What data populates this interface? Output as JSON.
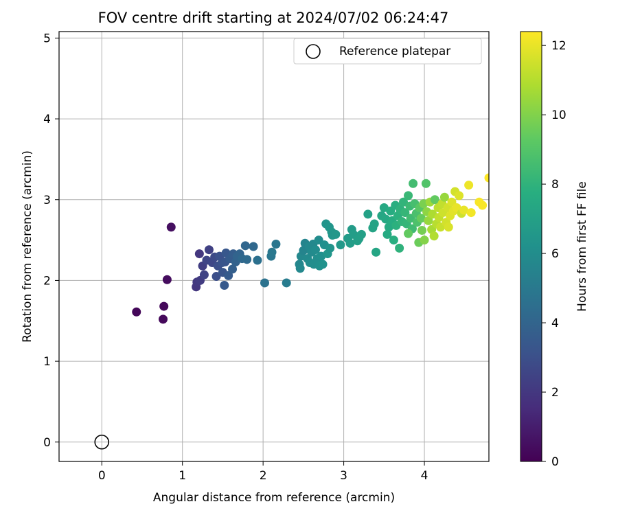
{
  "chart_data": {
    "type": "scatter",
    "title": "FOV centre drift starting at 2024/07/02 06:24:47",
    "xlabel": "Angular distance from reference (arcmin)",
    "ylabel": "Rotation from reference (arcmin)",
    "xlim": [
      -0.53,
      4.8
    ],
    "ylim": [
      -0.24,
      5.08
    ],
    "xticks": [
      "0",
      "1",
      "2",
      "3",
      "4"
    ],
    "yticks": [
      "0",
      "1",
      "2",
      "3",
      "4",
      "5"
    ],
    "grid": true,
    "legend": {
      "position": "top-right",
      "entries": [
        "Reference platepar"
      ]
    },
    "reference_point": {
      "x": 0,
      "y": 0
    },
    "colorbar": {
      "label": "Hours from first FF file",
      "range": [
        0,
        12.4
      ],
      "ticks": [
        "0",
        "2",
        "4",
        "6",
        "8",
        "10",
        "12"
      ],
      "colormap": "viridis"
    },
    "series": [
      {
        "points": [
          {
            "x": 0.43,
            "y": 1.61,
            "c": 0.2
          },
          {
            "x": 0.76,
            "y": 1.52,
            "c": 0.3
          },
          {
            "x": 0.77,
            "y": 1.68,
            "c": 0.3
          },
          {
            "x": 0.81,
            "y": 2.01,
            "c": 0.4
          },
          {
            "x": 0.86,
            "y": 2.66,
            "c": 0.5
          },
          {
            "x": 1.17,
            "y": 1.92,
            "c": 2.0
          },
          {
            "x": 1.18,
            "y": 1.98,
            "c": 2.1
          },
          {
            "x": 1.22,
            "y": 2.0,
            "c": 2.2
          },
          {
            "x": 1.21,
            "y": 2.33,
            "c": 2.0
          },
          {
            "x": 1.25,
            "y": 2.18,
            "c": 2.3
          },
          {
            "x": 1.27,
            "y": 2.07,
            "c": 2.5
          },
          {
            "x": 1.3,
            "y": 2.25,
            "c": 2.6
          },
          {
            "x": 1.33,
            "y": 2.38,
            "c": 2.4
          },
          {
            "x": 1.37,
            "y": 2.22,
            "c": 2.7
          },
          {
            "x": 1.4,
            "y": 2.29,
            "c": 2.8
          },
          {
            "x": 1.42,
            "y": 2.05,
            "c": 3.0
          },
          {
            "x": 1.44,
            "y": 2.18,
            "c": 3.0
          },
          {
            "x": 1.46,
            "y": 2.3,
            "c": 3.1
          },
          {
            "x": 1.49,
            "y": 2.22,
            "c": 3.2
          },
          {
            "x": 1.5,
            "y": 2.1,
            "c": 3.3
          },
          {
            "x": 1.52,
            "y": 1.94,
            "c": 3.5
          },
          {
            "x": 1.53,
            "y": 2.23,
            "c": 3.3
          },
          {
            "x": 1.54,
            "y": 2.34,
            "c": 3.4
          },
          {
            "x": 1.57,
            "y": 2.06,
            "c": 3.6
          },
          {
            "x": 1.59,
            "y": 2.27,
            "c": 3.6
          },
          {
            "x": 1.62,
            "y": 2.14,
            "c": 3.8
          },
          {
            "x": 1.63,
            "y": 2.33,
            "c": 3.7
          },
          {
            "x": 1.66,
            "y": 2.23,
            "c": 3.9
          },
          {
            "x": 1.68,
            "y": 2.3,
            "c": 4.0
          },
          {
            "x": 1.71,
            "y": 2.33,
            "c": 4.0
          },
          {
            "x": 1.74,
            "y": 2.27,
            "c": 4.2
          },
          {
            "x": 1.78,
            "y": 2.43,
            "c": 4.1
          },
          {
            "x": 1.8,
            "y": 2.26,
            "c": 4.3
          },
          {
            "x": 1.88,
            "y": 2.42,
            "c": 4.2
          },
          {
            "x": 1.93,
            "y": 2.25,
            "c": 4.6
          },
          {
            "x": 2.02,
            "y": 1.97,
            "c": 4.7
          },
          {
            "x": 2.1,
            "y": 2.3,
            "c": 4.9
          },
          {
            "x": 2.11,
            "y": 2.35,
            "c": 5.0
          },
          {
            "x": 2.16,
            "y": 2.45,
            "c": 4.9
          },
          {
            "x": 2.29,
            "y": 1.97,
            "c": 5.2
          },
          {
            "x": 2.45,
            "y": 2.2,
            "c": 5.7
          },
          {
            "x": 2.46,
            "y": 2.15,
            "c": 5.8
          },
          {
            "x": 2.47,
            "y": 2.3,
            "c": 5.8
          },
          {
            "x": 2.5,
            "y": 2.37,
            "c": 5.6
          },
          {
            "x": 2.52,
            "y": 2.46,
            "c": 5.6
          },
          {
            "x": 2.55,
            "y": 2.27,
            "c": 5.9
          },
          {
            "x": 2.57,
            "y": 2.42,
            "c": 5.8
          },
          {
            "x": 2.58,
            "y": 2.22,
            "c": 6.0
          },
          {
            "x": 2.6,
            "y": 2.35,
            "c": 5.9
          },
          {
            "x": 2.62,
            "y": 2.45,
            "c": 5.8
          },
          {
            "x": 2.63,
            "y": 2.2,
            "c": 6.1
          },
          {
            "x": 2.65,
            "y": 2.38,
            "c": 6.0
          },
          {
            "x": 2.67,
            "y": 2.27,
            "c": 6.1
          },
          {
            "x": 2.69,
            "y": 2.5,
            "c": 6.0
          },
          {
            "x": 2.7,
            "y": 2.18,
            "c": 6.2
          },
          {
            "x": 2.72,
            "y": 2.3,
            "c": 6.2
          },
          {
            "x": 2.74,
            "y": 2.2,
            "c": 6.3
          },
          {
            "x": 2.76,
            "y": 2.44,
            "c": 6.2
          },
          {
            "x": 2.78,
            "y": 2.7,
            "c": 6.4
          },
          {
            "x": 2.8,
            "y": 2.33,
            "c": 6.5
          },
          {
            "x": 2.82,
            "y": 2.66,
            "c": 6.5
          },
          {
            "x": 2.83,
            "y": 2.4,
            "c": 6.4
          },
          {
            "x": 2.85,
            "y": 2.6,
            "c": 6.6
          },
          {
            "x": 2.86,
            "y": 2.56,
            "c": 6.5
          },
          {
            "x": 2.9,
            "y": 2.57,
            "c": 6.6
          },
          {
            "x": 2.96,
            "y": 2.44,
            "c": 6.7
          },
          {
            "x": 3.05,
            "y": 2.52,
            "c": 6.8
          },
          {
            "x": 3.08,
            "y": 2.46,
            "c": 6.9
          },
          {
            "x": 3.1,
            "y": 2.63,
            "c": 6.8
          },
          {
            "x": 3.12,
            "y": 2.57,
            "c": 6.9
          },
          {
            "x": 3.17,
            "y": 2.49,
            "c": 7.0
          },
          {
            "x": 3.19,
            "y": 2.52,
            "c": 7.0
          },
          {
            "x": 3.22,
            "y": 2.57,
            "c": 7.0
          },
          {
            "x": 3.3,
            "y": 2.82,
            "c": 7.1
          },
          {
            "x": 3.36,
            "y": 2.65,
            "c": 7.2
          },
          {
            "x": 3.38,
            "y": 2.7,
            "c": 7.2
          },
          {
            "x": 3.4,
            "y": 2.35,
            "c": 7.3
          },
          {
            "x": 3.47,
            "y": 2.8,
            "c": 7.4
          },
          {
            "x": 3.5,
            "y": 2.9,
            "c": 7.5
          },
          {
            "x": 3.52,
            "y": 2.76,
            "c": 7.5
          },
          {
            "x": 3.54,
            "y": 2.57,
            "c": 7.6
          },
          {
            "x": 3.56,
            "y": 2.66,
            "c": 7.6
          },
          {
            "x": 3.58,
            "y": 2.86,
            "c": 7.7
          },
          {
            "x": 3.6,
            "y": 2.74,
            "c": 7.7
          },
          {
            "x": 3.62,
            "y": 2.5,
            "c": 7.8
          },
          {
            "x": 3.64,
            "y": 2.93,
            "c": 7.8
          },
          {
            "x": 3.65,
            "y": 2.68,
            "c": 7.9
          },
          {
            "x": 3.67,
            "y": 2.8,
            "c": 7.9
          },
          {
            "x": 3.69,
            "y": 2.4,
            "c": 8.0
          },
          {
            "x": 3.7,
            "y": 2.88,
            "c": 8.0
          },
          {
            "x": 3.72,
            "y": 2.73,
            "c": 8.1
          },
          {
            "x": 3.74,
            "y": 2.97,
            "c": 8.1
          },
          {
            "x": 3.76,
            "y": 2.84,
            "c": 8.2
          },
          {
            "x": 3.78,
            "y": 2.7,
            "c": 8.2
          },
          {
            "x": 3.8,
            "y": 3.05,
            "c": 8.3
          },
          {
            "x": 3.82,
            "y": 2.92,
            "c": 8.4
          },
          {
            "x": 3.83,
            "y": 2.77,
            "c": 8.5
          },
          {
            "x": 3.85,
            "y": 2.64,
            "c": 8.5
          },
          {
            "x": 3.86,
            "y": 3.2,
            "c": 8.6
          },
          {
            "x": 3.88,
            "y": 2.95,
            "c": 8.7
          },
          {
            "x": 3.9,
            "y": 2.83,
            "c": 8.8
          },
          {
            "x": 3.91,
            "y": 2.72,
            "c": 8.9
          },
          {
            "x": 3.8,
            "y": 2.58,
            "c": 9.4
          },
          {
            "x": 3.93,
            "y": 2.47,
            "c": 9.6
          },
          {
            "x": 3.94,
            "y": 2.9,
            "c": 9.2
          },
          {
            "x": 3.96,
            "y": 2.77,
            "c": 9.5
          },
          {
            "x": 3.97,
            "y": 2.62,
            "c": 9.8
          },
          {
            "x": 3.99,
            "y": 2.95,
            "c": 9.9
          },
          {
            "x": 4.0,
            "y": 2.5,
            "c": 10.1
          },
          {
            "x": 4.02,
            "y": 3.2,
            "c": 9.0
          },
          {
            "x": 4.03,
            "y": 2.85,
            "c": 10.3
          },
          {
            "x": 4.05,
            "y": 2.74,
            "c": 10.5
          },
          {
            "x": 4.07,
            "y": 2.97,
            "c": 10.6
          },
          {
            "x": 4.09,
            "y": 2.63,
            "c": 10.8
          },
          {
            "x": 4.1,
            "y": 2.82,
            "c": 10.9
          },
          {
            "x": 4.12,
            "y": 2.55,
            "c": 11.0
          },
          {
            "x": 4.13,
            "y": 3.0,
            "c": 9.4
          },
          {
            "x": 4.15,
            "y": 2.7,
            "c": 11.1
          },
          {
            "x": 4.17,
            "y": 2.9,
            "c": 11.2
          },
          {
            "x": 4.18,
            "y": 2.78,
            "c": 11.3
          },
          {
            "x": 4.2,
            "y": 2.66,
            "c": 11.4
          },
          {
            "x": 4.22,
            "y": 2.95,
            "c": 11.3
          },
          {
            "x": 4.23,
            "y": 2.84,
            "c": 11.5
          },
          {
            "x": 4.25,
            "y": 3.03,
            "c": 10.5
          },
          {
            "x": 4.27,
            "y": 2.72,
            "c": 11.6
          },
          {
            "x": 4.29,
            "y": 2.9,
            "c": 11.6
          },
          {
            "x": 4.3,
            "y": 2.66,
            "c": 11.7
          },
          {
            "x": 4.32,
            "y": 2.8,
            "c": 11.8
          },
          {
            "x": 4.34,
            "y": 2.97,
            "c": 11.8
          },
          {
            "x": 4.36,
            "y": 2.86,
            "c": 11.9
          },
          {
            "x": 4.38,
            "y": 3.1,
            "c": 11.6
          },
          {
            "x": 4.4,
            "y": 2.9,
            "c": 12.0
          },
          {
            "x": 4.43,
            "y": 3.05,
            "c": 11.8
          },
          {
            "x": 4.46,
            "y": 2.83,
            "c": 11.5
          },
          {
            "x": 4.49,
            "y": 2.87,
            "c": 12.0
          },
          {
            "x": 4.55,
            "y": 3.18,
            "c": 12.1
          },
          {
            "x": 4.58,
            "y": 2.84,
            "c": 12.2
          },
          {
            "x": 4.68,
            "y": 2.97,
            "c": 12.3
          },
          {
            "x": 4.72,
            "y": 2.93,
            "c": 12.3
          },
          {
            "x": 4.8,
            "y": 3.27,
            "c": 12.4
          }
        ]
      }
    ]
  }
}
